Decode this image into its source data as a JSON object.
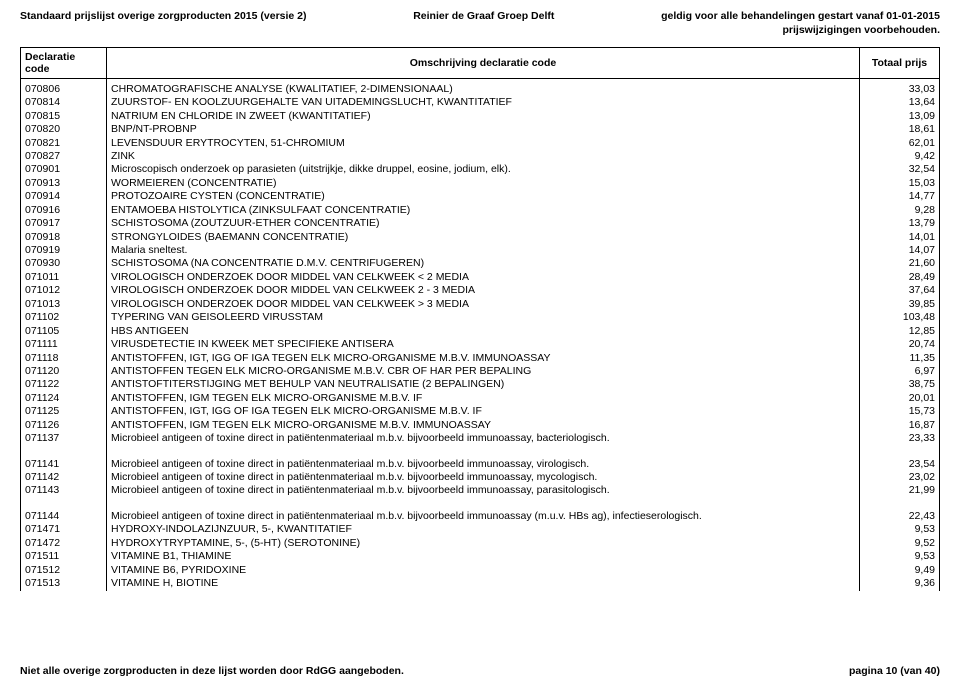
{
  "header": {
    "left": "Standaard prijslijst overige zorgproducten 2015 (versie 2)",
    "center": "Reinier de Graaf Groep Delft",
    "right_line1": "geldig voor alle behandelingen gestart vanaf 01-01-2015",
    "right_line2": "prijswijzigingen voorbehouden."
  },
  "columns": {
    "code": "Declaratie code",
    "desc": "Omschrijving declaratie code",
    "price": "Totaal prijs"
  },
  "rows": [
    {
      "code": "070806",
      "desc": "CHROMATOGRAFISCHE ANALYSE (KWALITATIEF, 2-DIMENSIONAAL)",
      "price": "33,03"
    },
    {
      "code": "070814",
      "desc": "ZUURSTOF- EN KOOLZUURGEHALTE VAN UITADEMINGSLUCHT, KWANTITATIEF",
      "price": "13,64"
    },
    {
      "code": "070815",
      "desc": "NATRIUM EN CHLORIDE IN ZWEET (KWANTITATIEF)",
      "price": "13,09"
    },
    {
      "code": "070820",
      "desc": "BNP/NT-PROBNP",
      "price": "18,61"
    },
    {
      "code": "070821",
      "desc": "LEVENSDUUR ERYTROCYTEN, 51-CHROMIUM",
      "price": "62,01"
    },
    {
      "code": "070827",
      "desc": "ZINK",
      "price": "9,42"
    },
    {
      "code": "070901",
      "desc": "Microscopisch onderzoek op parasieten (uitstrijkje, dikke druppel, eosine, jodium, elk).",
      "price": "32,54"
    },
    {
      "code": "070913",
      "desc": "WORMEIEREN (CONCENTRATIE)",
      "price": "15,03"
    },
    {
      "code": "070914",
      "desc": "PROTOZOAIRE CYSTEN (CONCENTRATIE)",
      "price": "14,77"
    },
    {
      "code": "070916",
      "desc": "ENTAMOEBA HISTOLYTICA (ZINKSULFAAT CONCENTRATIE)",
      "price": "9,28"
    },
    {
      "code": "070917",
      "desc": "SCHISTOSOMA (ZOUTZUUR-ETHER CONCENTRATIE)",
      "price": "13,79"
    },
    {
      "code": "070918",
      "desc": "STRONGYLOIDES (BAEMANN CONCENTRATIE)",
      "price": "14,01"
    },
    {
      "code": "070919",
      "desc": "Malaria sneltest.",
      "price": "14,07"
    },
    {
      "code": "070930",
      "desc": "SCHISTOSOMA (NA CONCENTRATIE D.M.V. CENTRIFUGEREN)",
      "price": "21,60"
    },
    {
      "code": "071011",
      "desc": "VIROLOGISCH ONDERZOEK DOOR MIDDEL VAN CELKWEEK < 2 MEDIA",
      "price": "28,49"
    },
    {
      "code": "071012",
      "desc": "VIROLOGISCH ONDERZOEK DOOR MIDDEL VAN CELKWEEK 2 - 3 MEDIA",
      "price": "37,64"
    },
    {
      "code": "071013",
      "desc": "VIROLOGISCH ONDERZOEK DOOR MIDDEL VAN CELKWEEK > 3 MEDIA",
      "price": "39,85"
    },
    {
      "code": "071102",
      "desc": "TYPERING VAN GEISOLEERD VIRUSSTAM",
      "price": "103,48"
    },
    {
      "code": "071105",
      "desc": "HBS ANTIGEEN",
      "price": "12,85"
    },
    {
      "code": "071111",
      "desc": "VIRUSDETECTIE IN KWEEK MET SPECIFIEKE ANTISERA",
      "price": "20,74"
    },
    {
      "code": "071118",
      "desc": "ANTISTOFFEN, IGT, IGG OF IGA TEGEN ELK MICRO-ORGANISME M.B.V. IMMUNOASSAY",
      "price": "11,35"
    },
    {
      "code": "071120",
      "desc": "ANTISTOFFEN TEGEN ELK MICRO-ORGANISME M.B.V. CBR OF HAR PER BEPALING",
      "price": "6,97"
    },
    {
      "code": "071122",
      "desc": "ANTISTOFTITERSTIJGING MET BEHULP VAN NEUTRALISATIE (2 BEPALINGEN)",
      "price": "38,75"
    },
    {
      "code": "071124",
      "desc": "ANTISTOFFEN, IGM TEGEN ELK MICRO-ORGANISME M.B.V. IF",
      "price": "20,01"
    },
    {
      "code": "071125",
      "desc": "ANTISTOFFEN, IGT, IGG OF IGA TEGEN ELK MICRO-ORGANISME M.B.V. IF",
      "price": "15,73"
    },
    {
      "code": "071126",
      "desc": "ANTISTOFFEN, IGM TEGEN ELK MICRO-ORGANISME M.B.V. IMMUNOASSAY",
      "price": "16,87"
    },
    {
      "code": "071137",
      "desc": "Microbieel antigeen of toxine direct in patiëntenmateriaal m.b.v. bijvoorbeeld immunoassay, bacteriologisch.",
      "price": "23,33"
    },
    {
      "gap": true
    },
    {
      "code": "071141",
      "desc": "Microbieel antigeen of toxine direct in patiëntenmateriaal m.b.v. bijvoorbeeld immunoassay, virologisch.",
      "price": "23,54"
    },
    {
      "code": "071142",
      "desc": "Microbieel antigeen of toxine direct in patiëntenmateriaal m.b.v. bijvoorbeeld immunoassay, mycologisch.",
      "price": "23,02"
    },
    {
      "code": "071143",
      "desc": "Microbieel antigeen of toxine direct in patiëntenmateriaal m.b.v. bijvoorbeeld immunoassay, parasitologisch.",
      "price": "21,99"
    },
    {
      "gap": true
    },
    {
      "code": "071144",
      "desc": "Microbieel antigeen of toxine direct in patiëntenmateriaal m.b.v. bijvoorbeeld immunoassay (m.u.v. HBs ag), infectieserologisch.",
      "price": "22,43"
    },
    {
      "code": "071471",
      "desc": "HYDROXY-INDOLAZIJNZUUR, 5-, KWANTITATIEF",
      "price": "9,53"
    },
    {
      "code": "071472",
      "desc": "HYDROXYTRYPTAMINE, 5-, (5-HT) (SEROTONINE)",
      "price": "9,52"
    },
    {
      "code": "071511",
      "desc": "VITAMINE B1, THIAMINE",
      "price": "9,53"
    },
    {
      "code": "071512",
      "desc": "VITAMINE B6, PYRIDOXINE",
      "price": "9,49"
    },
    {
      "code": "071513",
      "desc": "VITAMINE H, BIOTINE",
      "price": "9,36"
    }
  ],
  "footer": {
    "left": "Niet alle overige zorgproducten in deze lijst worden door RdGG aangeboden.",
    "right": "pagina 10 (van 40)"
  }
}
